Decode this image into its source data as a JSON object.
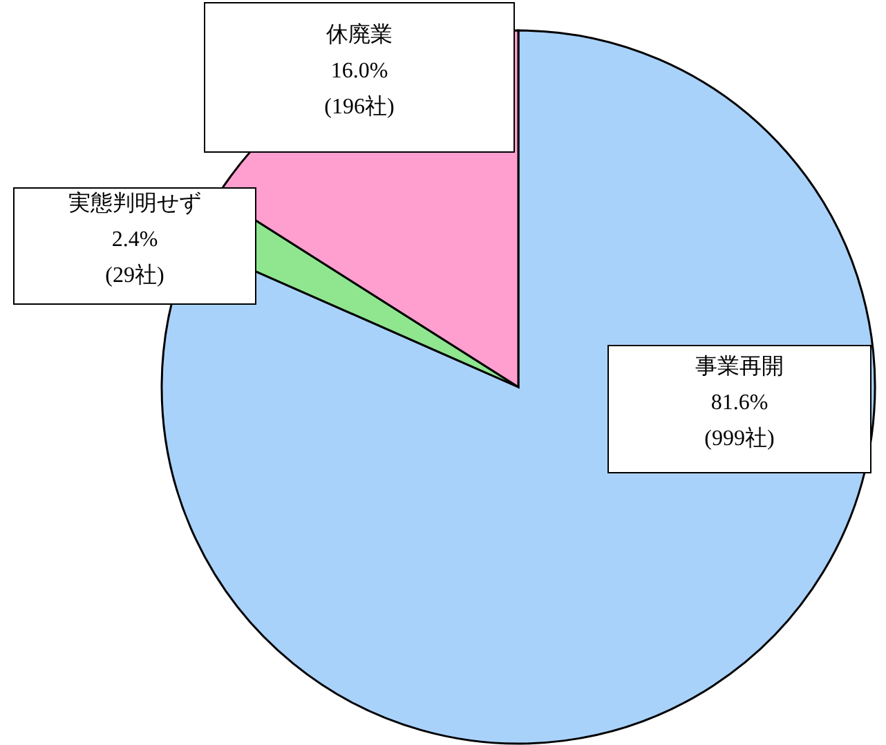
{
  "chart_data": {
    "type": "pie",
    "categories": [
      "事業再開",
      "実態判明せず",
      "休廃業"
    ],
    "values": [
      81.6,
      2.4,
      16.0
    ],
    "colors": [
      "#a9d2fa",
      "#8fe68f",
      "#ff9fcf"
    ],
    "value_labels": [
      "81.6%\n(999社)",
      "2.4%\n(29社)",
      "16.0%\n(196社)"
    ]
  }
}
